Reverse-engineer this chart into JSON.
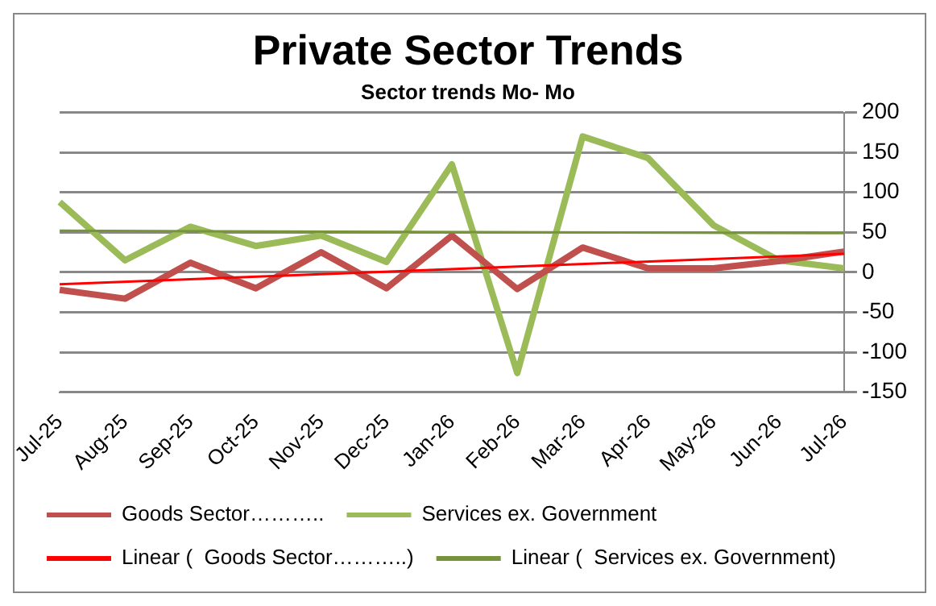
{
  "chart_data": {
    "type": "line",
    "title": "Private Sector Trends",
    "subtitle": "Sector trends Mo- Mo",
    "categories": [
      "Jul-25",
      "Aug-25",
      "Sep-25",
      "Oct-25",
      "Nov-25",
      "Dec-25",
      "Jan-26",
      "Feb-26",
      "Mar-26",
      "Apr-26",
      "May-26",
      "Jun-26",
      "Jul-26"
    ],
    "series": [
      {
        "name": "Goods Sector………..",
        "color": "#c0504d",
        "values": [
          -22,
          -33,
          12,
          -20,
          25,
          -20,
          46,
          -21,
          31,
          5,
          5,
          14,
          26
        ]
      },
      {
        "name": "Services ex. Government",
        "color": "#9bbb59",
        "values": [
          88,
          15,
          57,
          33,
          46,
          13,
          135,
          -126,
          170,
          143,
          59,
          15,
          5
        ]
      },
      {
        "name": "Linear (  Goods Sector………..)",
        "type": "line",
        "color": "#ff0000",
        "x": [
          "Jul-25",
          "Jul-26"
        ],
        "values": [
          -15,
          23
        ]
      },
      {
        "name": "Linear (  Services ex. Government)",
        "type": "line",
        "color": "#77933c",
        "x": [
          "Jul-25",
          "Jul-26"
        ],
        "values": [
          52,
          49
        ]
      }
    ],
    "ylim": [
      -150,
      200
    ],
    "yticks": [
      -150,
      -100,
      -50,
      0,
      50,
      100,
      150,
      200
    ],
    "grid": "y",
    "legend": "bottom"
  }
}
